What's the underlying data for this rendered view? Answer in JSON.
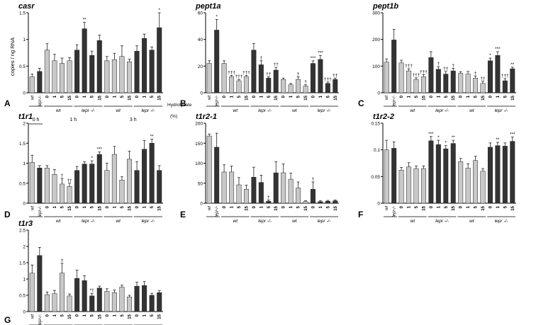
{
  "figure": {
    "y_axis_label": "copies / ng RNA",
    "hydrolysate_label": "Hydrolysate",
    "hydrolysate_unit": "(%)",
    "colors": {
      "wt": "#c8c8c8",
      "lepr": "#333333",
      "axis": "#000000"
    }
  },
  "chart_data": [
    {
      "type": "bar",
      "panel": "A",
      "title": "casr",
      "ylim": [
        0,
        1.5
      ],
      "yticks": [
        0,
        0.5,
        1,
        1.5
      ],
      "categories": [
        "wt",
        "lepr-/-",
        "0",
        "1",
        "5",
        "15",
        "0",
        "1",
        "5",
        "15",
        "0",
        "1",
        "5",
        "15",
        "0",
        "1",
        "5",
        "15"
      ],
      "values": [
        0.3,
        0.4,
        0.8,
        0.6,
        0.55,
        0.6,
        0.8,
        1.2,
        0.7,
        0.98,
        0.6,
        0.62,
        0.68,
        0.58,
        0.78,
        1.02,
        0.8,
        1.22
      ],
      "errors": [
        0.05,
        0.06,
        0.12,
        0.12,
        0.1,
        0.06,
        0.1,
        0.12,
        0.08,
        0.1,
        0.08,
        0.12,
        0.2,
        0.05,
        0.1,
        0.08,
        0.06,
        0.28
      ],
      "marks": [
        "",
        "",
        "",
        "",
        "",
        "",
        "",
        "**",
        "",
        "",
        "",
        "",
        "",
        "",
        "",
        "",
        "",
        "*"
      ],
      "group_labels": [
        "wt",
        "lepr -/-",
        "wt",
        "lepr -/-"
      ],
      "time_labels": [
        "0 h",
        "1 h",
        "3 h"
      ]
    },
    {
      "type": "bar",
      "panel": "B",
      "title": "pept1a",
      "ylim": [
        0,
        60
      ],
      "yticks": [
        0,
        20,
        40,
        60
      ],
      "categories": [
        "wt",
        "lepr-/-",
        "0",
        "1",
        "5",
        "15",
        "0",
        "1",
        "5",
        "15",
        "0",
        "1",
        "5",
        "15",
        "0",
        "1",
        "5",
        "15"
      ],
      "values": [
        22,
        47,
        22,
        12,
        9,
        12,
        32,
        21,
        11,
        17,
        10,
        6,
        10,
        5,
        22,
        25,
        7,
        10
      ],
      "errors": [
        2,
        8,
        2,
        1,
        1,
        1,
        5,
        3,
        1,
        2,
        1,
        1,
        2,
        1,
        2,
        3,
        1,
        1
      ],
      "marks": [
        "",
        "*",
        "",
        "†††",
        "†††",
        "†††",
        "",
        "†",
        "††",
        "††",
        "",
        "",
        "†",
        "†",
        "***",
        "***",
        "†††",
        "††"
      ],
      "group_labels": [
        "wt",
        "lepr -/-",
        "wt",
        "lepr -/-"
      ]
    },
    {
      "type": "bar",
      "panel": "C",
      "title": "pept1b",
      "ylim": [
        0,
        300
      ],
      "yticks": [
        0,
        100,
        200,
        300
      ],
      "categories": [
        "wt",
        "lepr-/-",
        "0",
        "1",
        "5",
        "15",
        "0",
        "1",
        "5",
        "15",
        "0",
        "1",
        "5",
        "15",
        "0",
        "1",
        "5",
        "15"
      ],
      "values": [
        115,
        198,
        112,
        82,
        50,
        60,
        132,
        88,
        70,
        82,
        73,
        70,
        55,
        35,
        120,
        140,
        45,
        90
      ],
      "errors": [
        12,
        40,
        10,
        8,
        6,
        8,
        22,
        10,
        10,
        10,
        6,
        10,
        8,
        8,
        10,
        14,
        8,
        6
      ],
      "marks": [
        "",
        "",
        "",
        "†††",
        "†††",
        "†††",
        "",
        "†",
        "††",
        "†",
        "",
        "",
        "†",
        "††",
        "*",
        "***",
        "†††",
        "**"
      ],
      "group_labels": [
        "wt",
        "lepr -/-",
        "wt",
        "lepr -/-"
      ]
    },
    {
      "type": "bar",
      "panel": "D",
      "title": "t1r1",
      "ylim": [
        0,
        2
      ],
      "yticks": [
        0,
        0.5,
        1,
        1.5,
        2
      ],
      "categories": [
        "wt",
        "lepr-/-",
        "0",
        "1",
        "5",
        "15",
        "0",
        "1",
        "5",
        "15",
        "0",
        "1",
        "5",
        "15",
        "0",
        "1",
        "5",
        "15"
      ],
      "values": [
        1.02,
        0.88,
        0.88,
        0.72,
        0.48,
        0.42,
        0.82,
        0.98,
        0.98,
        1.22,
        0.82,
        1.22,
        0.58,
        1.1,
        0.82,
        1.35,
        1.5,
        0.82
      ],
      "errors": [
        0.18,
        0.06,
        0.06,
        0.12,
        0.14,
        0.08,
        0.1,
        0.06,
        0.08,
        0.06,
        0.18,
        0.2,
        0.08,
        0.2,
        0.22,
        0.22,
        0.1,
        0.12
      ],
      "marks": [
        "",
        "",
        "",
        "",
        "†",
        "††",
        "",
        "",
        "*",
        "***",
        "",
        "",
        "",
        "",
        "",
        "",
        "**",
        ""
      ],
      "group_labels": [
        "wt",
        "lepr -/-",
        "wt",
        "lepr -/-"
      ]
    },
    {
      "type": "bar",
      "panel": "E",
      "title": "t1r2-1",
      "ylim": [
        0,
        200
      ],
      "yticks": [
        0,
        50,
        100,
        150,
        200
      ],
      "categories": [
        "wt",
        "lepr-/-",
        "0",
        "1",
        "5",
        "15",
        "0",
        "1",
        "5",
        "15",
        "0",
        "1",
        "5",
        "15",
        "0",
        "1",
        "5",
        "15"
      ],
      "values": [
        168,
        140,
        78,
        78,
        46,
        35,
        65,
        52,
        5,
        76,
        76,
        60,
        38,
        4,
        35,
        4,
        5,
        6
      ],
      "errors": [
        5,
        35,
        18,
        15,
        18,
        10,
        25,
        18,
        3,
        28,
        22,
        15,
        15,
        2,
        18,
        2,
        2,
        2
      ],
      "marks": [
        "",
        "",
        "",
        "",
        "",
        "",
        "",
        "",
        "†",
        "",
        "",
        "",
        "",
        "",
        "†",
        "",
        "",
        ""
      ],
      "group_labels": [
        "wt",
        "lepr -/-",
        "wt",
        "lepr -/-"
      ]
    },
    {
      "type": "bar",
      "panel": "F",
      "title": "t1r2-2",
      "ylim": [
        0,
        0.15
      ],
      "yticks": [
        0,
        0.05,
        0.1,
        0.15
      ],
      "categories": [
        "wt",
        "lepr-/-",
        "0",
        "1",
        "5",
        "15",
        "0",
        "1",
        "5",
        "15",
        "0",
        "1",
        "5",
        "15",
        "0",
        "1",
        "5",
        "15"
      ],
      "values": [
        0.1,
        0.103,
        0.062,
        0.068,
        0.065,
        0.065,
        0.117,
        0.11,
        0.102,
        0.112,
        0.078,
        0.066,
        0.08,
        0.06,
        0.105,
        0.108,
        0.107,
        0.116
      ],
      "errors": [
        0.018,
        0.012,
        0.005,
        0.008,
        0.005,
        0.005,
        0.008,
        0.008,
        0.006,
        0.006,
        0.006,
        0.008,
        0.008,
        0.005,
        0.008,
        0.006,
        0.006,
        0.008
      ],
      "marks": [
        "",
        "",
        "",
        "",
        "",
        "",
        "***",
        "*",
        "*",
        "**",
        "",
        "",
        "",
        "",
        "",
        "**",
        "",
        "***"
      ],
      "group_labels": [
        "wt",
        "lepr -/-",
        "wt",
        "lepr -/-"
      ]
    },
    {
      "type": "bar",
      "panel": "G",
      "title": "t1r3",
      "ylim": [
        0,
        2.5
      ],
      "yticks": [
        0,
        0.5,
        1,
        1.5,
        2,
        2.5
      ],
      "categories": [
        "wt",
        "lepr-/-",
        "0",
        "1",
        "5",
        "15",
        "0",
        "1",
        "5",
        "15",
        "0",
        "1",
        "5",
        "15",
        "0",
        "1",
        "5",
        "15"
      ],
      "values": [
        1.18,
        1.72,
        0.52,
        0.55,
        1.18,
        0.48,
        1.02,
        0.95,
        0.48,
        0.72,
        0.62,
        0.58,
        0.75,
        0.45,
        0.78,
        0.8,
        0.5,
        0.58
      ],
      "errors": [
        0.25,
        0.25,
        0.08,
        0.1,
        0.3,
        0.06,
        0.25,
        0.15,
        0.08,
        0.06,
        0.08,
        0.08,
        0.06,
        0.05,
        0.12,
        0.12,
        0.06,
        0.06
      ],
      "marks": [
        "",
        "",
        "",
        "",
        "†",
        "",
        "",
        "",
        "*†",
        "",
        "",
        "",
        "",
        "",
        "",
        "",
        "",
        ""
      ],
      "group_labels": [
        "wt",
        "lepr -/-",
        "wt",
        "lepr -/-"
      ]
    }
  ]
}
